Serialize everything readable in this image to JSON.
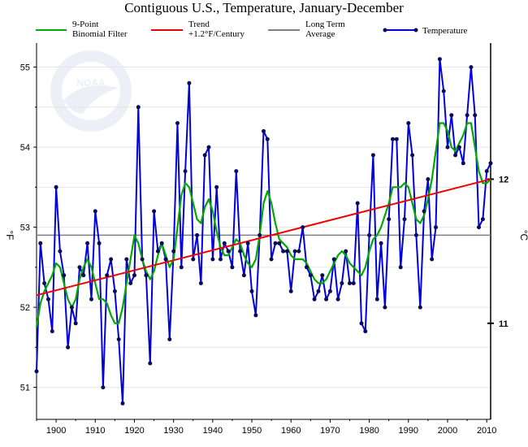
{
  "chart_data": {
    "type": "line",
    "title": "Contiguous U.S., Temperature, January-December",
    "ylabel_left": "°F",
    "ylabel_right": "°C",
    "xlim": [
      1895,
      2011
    ],
    "ylim": [
      50.6,
      55.3
    ],
    "x_ticks": [
      1900,
      1910,
      1920,
      1930,
      1940,
      1950,
      1960,
      1970,
      1980,
      1990,
      2000,
      2010
    ],
    "y_ticks": [
      51,
      52,
      53,
      54,
      55
    ],
    "y_ticks_celsius": [
      11,
      12
    ],
    "grid": "horizontal",
    "legend_placement": "top",
    "legend": {
      "binomial": [
        "9-Point",
        "Binomial Filter"
      ],
      "trend": [
        "Trend",
        "+1.2°F/Century"
      ],
      "average": [
        "Long Term",
        "Average"
      ],
      "temperature": [
        "Temperature"
      ]
    },
    "colors": {
      "temperature": "#0000dd",
      "binomial": "#00aa00",
      "trend": "#ee0000",
      "average": "#808080",
      "grid": "#e6e6e6"
    },
    "long_term_average": 52.9,
    "trend_line": {
      "x": [
        1895,
        2011
      ],
      "y": [
        52.15,
        53.6
      ]
    },
    "temperature": {
      "x": [
        1895,
        1896,
        1897,
        1898,
        1899,
        1900,
        1901,
        1902,
        1903,
        1904,
        1905,
        1906,
        1907,
        1908,
        1909,
        1910,
        1911,
        1912,
        1913,
        1914,
        1915,
        1916,
        1917,
        1918,
        1919,
        1920,
        1921,
        1922,
        1923,
        1924,
        1925,
        1926,
        1927,
        1928,
        1929,
        1930,
        1931,
        1932,
        1933,
        1934,
        1935,
        1936,
        1937,
        1938,
        1939,
        1940,
        1941,
        1942,
        1943,
        1944,
        1945,
        1946,
        1947,
        1948,
        1949,
        1950,
        1951,
        1952,
        1953,
        1954,
        1955,
        1956,
        1957,
        1958,
        1959,
        1960,
        1961,
        1962,
        1963,
        1964,
        1965,
        1966,
        1967,
        1968,
        1969,
        1970,
        1971,
        1972,
        1973,
        1974,
        1975,
        1976,
        1977,
        1978,
        1979,
        1980,
        1981,
        1982,
        1983,
        1984,
        1985,
        1986,
        1987,
        1988,
        1989,
        1990,
        1991,
        1992,
        1993,
        1994,
        1995,
        1996,
        1997,
        1998,
        1999,
        2000,
        2001,
        2002,
        2003,
        2004,
        2005,
        2006,
        2007,
        2008,
        2009,
        2010,
        2011
      ],
      "y": [
        51.2,
        52.8,
        52.3,
        52.1,
        51.7,
        53.5,
        52.7,
        52.4,
        51.5,
        52.0,
        51.8,
        52.5,
        52.4,
        52.8,
        52.1,
        53.2,
        52.8,
        51.0,
        52.4,
        52.6,
        52.2,
        51.6,
        50.8,
        52.6,
        52.3,
        52.4,
        54.5,
        52.6,
        52.4,
        51.3,
        53.2,
        52.7,
        52.8,
        52.6,
        51.6,
        52.7,
        54.3,
        52.5,
        53.7,
        54.8,
        52.6,
        52.9,
        52.3,
        53.9,
        54.0,
        52.6,
        53.5,
        52.6,
        52.8,
        52.7,
        52.5,
        53.7,
        52.7,
        52.4,
        52.8,
        52.2,
        51.9,
        52.9,
        54.2,
        54.1,
        52.6,
        52.8,
        52.8,
        52.7,
        52.7,
        52.2,
        52.7,
        52.7,
        53.0,
        52.5,
        52.4,
        52.1,
        52.2,
        52.4,
        52.1,
        52.2,
        52.6,
        52.1,
        52.3,
        52.7,
        52.3,
        52.3,
        53.3,
        51.8,
        51.7,
        52.9,
        53.9,
        52.1,
        52.8,
        52.0,
        53.1,
        54.1,
        54.1,
        52.5,
        53.1,
        54.3,
        53.9,
        52.9,
        52.0,
        53.2,
        53.6,
        52.6,
        53.0,
        55.1,
        54.7,
        54.0,
        54.4,
        53.9,
        54.0,
        53.8,
        54.4,
        55.0,
        54.4,
        53.0,
        53.1,
        53.7,
        53.8
      ]
    },
    "binomial_filter": {
      "x": [
        1895,
        1896,
        1897,
        1898,
        1899,
        1900,
        1901,
        1902,
        1903,
        1904,
        1905,
        1906,
        1907,
        1908,
        1909,
        1910,
        1911,
        1912,
        1913,
        1914,
        1915,
        1916,
        1917,
        1918,
        1919,
        1920,
        1921,
        1922,
        1923,
        1924,
        1925,
        1926,
        1927,
        1928,
        1929,
        1930,
        1931,
        1932,
        1933,
        1934,
        1935,
        1936,
        1937,
        1938,
        1939,
        1940,
        1941,
        1942,
        1943,
        1944,
        1945,
        1946,
        1947,
        1948,
        1949,
        1950,
        1951,
        1952,
        1953,
        1954,
        1955,
        1956,
        1957,
        1958,
        1959,
        1960,
        1961,
        1962,
        1963,
        1964,
        1965,
        1966,
        1967,
        1968,
        1969,
        1970,
        1971,
        1972,
        1973,
        1974,
        1975,
        1976,
        1977,
        1978,
        1979,
        1980,
        1981,
        1982,
        1983,
        1984,
        1985,
        1986,
        1987,
        1988,
        1989,
        1990,
        1991,
        1992,
        1993,
        1994,
        1995,
        1996,
        1997,
        1998,
        1999,
        2000,
        2001,
        2002,
        2003,
        2004,
        2005,
        2006,
        2007,
        2008,
        2009,
        2010,
        2011
      ],
      "y": [
        51.75,
        52.05,
        52.2,
        52.3,
        52.4,
        52.55,
        52.5,
        52.3,
        52.1,
        52.0,
        52.1,
        52.35,
        52.5,
        52.6,
        52.5,
        52.3,
        52.1,
        52.1,
        52.05,
        51.9,
        51.8,
        51.8,
        52.0,
        52.3,
        52.6,
        52.9,
        52.8,
        52.6,
        52.45,
        52.35,
        52.45,
        52.65,
        52.8,
        52.65,
        52.5,
        52.6,
        53.0,
        53.4,
        53.55,
        53.5,
        53.3,
        53.1,
        53.05,
        53.25,
        53.35,
        53.2,
        52.95,
        52.75,
        52.65,
        52.65,
        52.75,
        52.85,
        52.8,
        52.65,
        52.55,
        52.5,
        52.6,
        52.9,
        53.3,
        53.45,
        53.3,
        53.05,
        52.85,
        52.8,
        52.75,
        52.65,
        52.6,
        52.6,
        52.6,
        52.55,
        52.45,
        52.35,
        52.3,
        52.3,
        52.35,
        52.45,
        52.55,
        52.65,
        52.7,
        52.65,
        52.55,
        52.5,
        52.45,
        52.4,
        52.5,
        52.7,
        52.85,
        52.9,
        53.0,
        53.15,
        53.3,
        53.5,
        53.5,
        53.5,
        53.55,
        53.5,
        53.3,
        53.1,
        53.05,
        53.15,
        53.35,
        53.6,
        53.95,
        54.3,
        54.3,
        54.2,
        54.0,
        53.95,
        54.05,
        54.15,
        54.3,
        54.3,
        54.0,
        53.7,
        53.55,
        53.55,
        53.6
      ]
    }
  }
}
